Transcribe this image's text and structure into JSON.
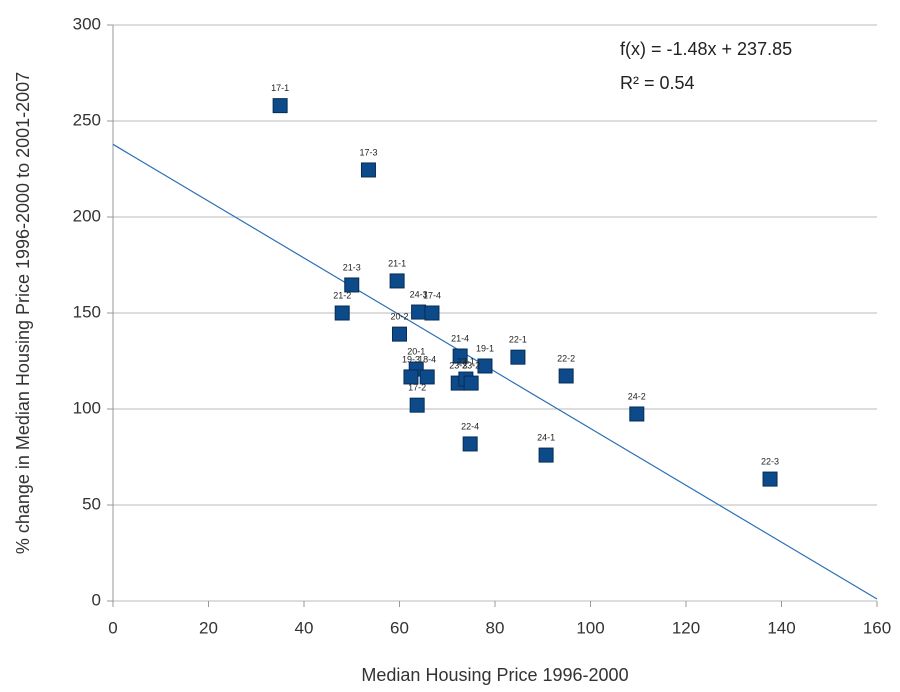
{
  "chart_data": {
    "type": "scatter",
    "x_label": "Median Housing Price 1996-2000",
    "y_label": "% change in Median Housing Price 1996-2000 to 2001-2007",
    "x": [
      35,
      53.5,
      50,
      48,
      59.5,
      64,
      66.8,
      60,
      72.7,
      77.9,
      84.8,
      94.9,
      63.5,
      62.4,
      65.8,
      72.3,
      73.9,
      75,
      63.7,
      74.8,
      90.7,
      109.7,
      137.6
    ],
    "values": [
      258,
      224.5,
      164.6,
      150,
      166.7,
      150.5,
      150,
      139,
      127.6,
      122.4,
      127,
      117.2,
      120.8,
      116.7,
      116.7,
      113.5,
      115.6,
      113.5,
      102,
      81.8,
      76,
      97.4,
      63.5
    ],
    "point_labels": [
      "17-1",
      "17-3",
      "21-3",
      "21-2",
      "21-1",
      "24-3",
      "17-4",
      "20-2",
      "21-4",
      "19-1",
      "22-1",
      "22-2",
      "20-1",
      "19-3",
      "18-4",
      "23-3",
      "23-1",
      "23-2",
      "17-2",
      "22-4",
      "24-1",
      "24-2",
      "22-3"
    ],
    "color": "#0d4a8a",
    "trendline": {
      "slope": -1.48,
      "intercept": 237.85,
      "color": "#2c6fb5",
      "equation": "f(x) = -1.48x + 237.85",
      "r2": "R² = 0.54"
    },
    "xlim": [
      0,
      160
    ],
    "xticks": [
      0,
      20,
      40,
      60,
      80,
      100,
      120,
      140,
      160
    ],
    "ylim": [
      0,
      300
    ],
    "yticks": [
      0,
      50,
      100,
      150,
      200,
      250,
      300
    ],
    "grid": true
  }
}
